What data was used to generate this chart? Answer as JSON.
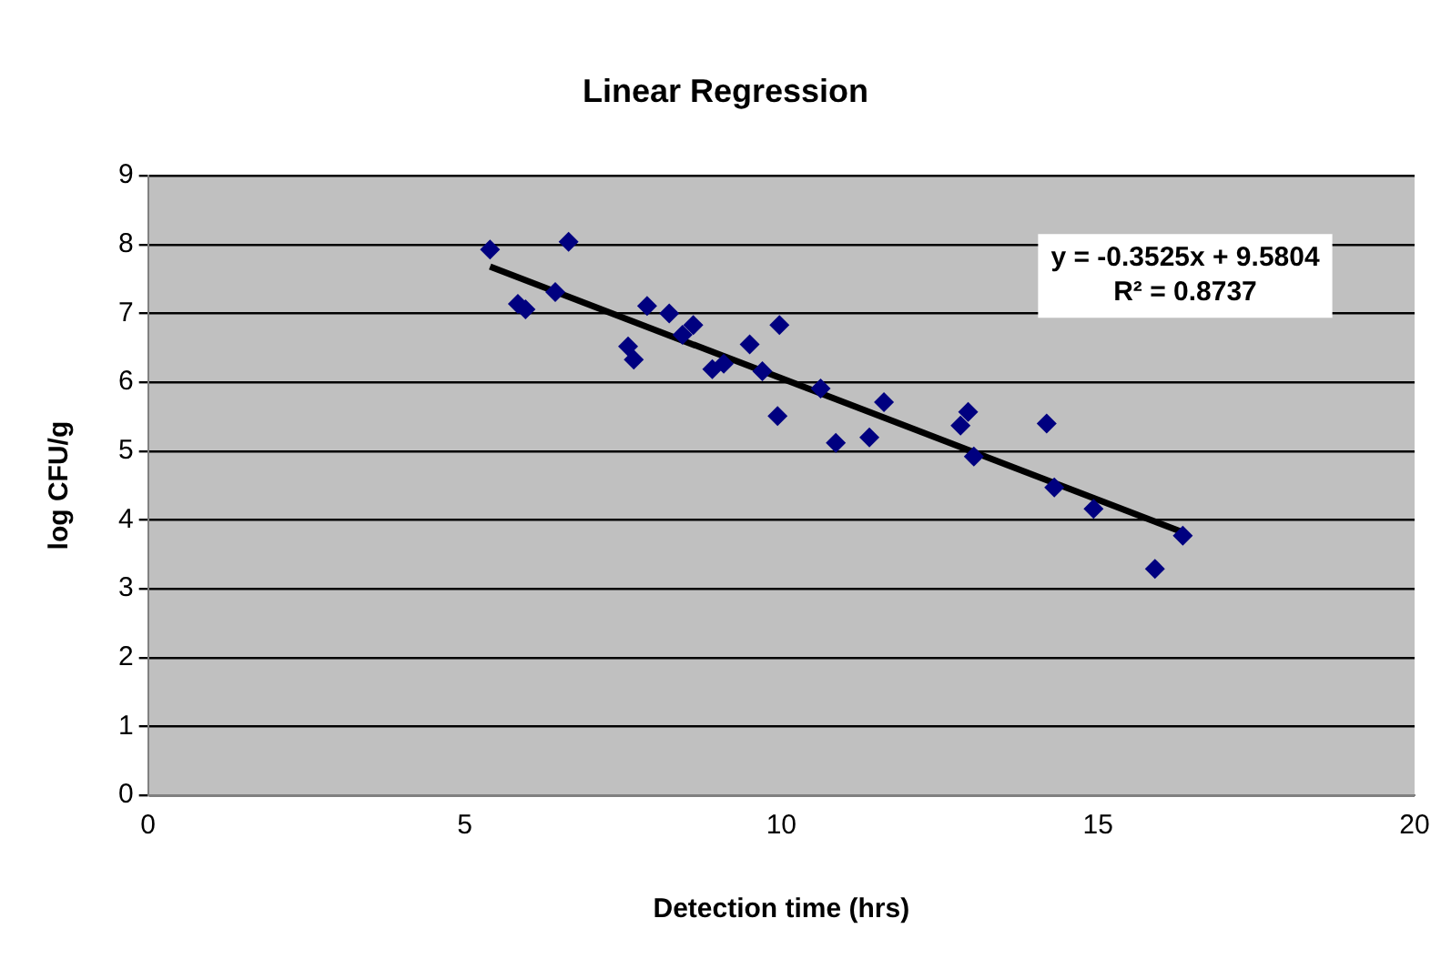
{
  "chart_data": {
    "type": "scatter",
    "title": "Linear Regression",
    "xlabel": "Detection time (hrs)",
    "ylabel": "log CFU/g",
    "xlim": [
      0,
      20
    ],
    "xticks": [
      0,
      5,
      10,
      15,
      20
    ],
    "ylim": [
      0,
      9
    ],
    "yticks": [
      0,
      1,
      2,
      3,
      4,
      5,
      6,
      7,
      8,
      9
    ],
    "grid": "y",
    "legend": false,
    "marker": "diamond",
    "series": [
      {
        "type": "scatter",
        "color": "#000080",
        "x": [
          5.4,
          5.84,
          5.96,
          6.43,
          6.64,
          7.58,
          7.67,
          7.88,
          8.23,
          8.44,
          8.61,
          8.91,
          9.09,
          9.5,
          9.7,
          9.97,
          9.94,
          10.62,
          10.86,
          11.39,
          11.62,
          12.83,
          12.95,
          13.04,
          14.19,
          14.31,
          14.93,
          15.9,
          16.34
        ],
        "values": [
          7.93,
          7.14,
          7.06,
          7.31,
          8.04,
          6.52,
          6.33,
          7.11,
          7.0,
          6.69,
          6.83,
          6.19,
          6.27,
          6.55,
          6.16,
          6.83,
          5.51,
          5.91,
          5.12,
          5.2,
          5.71,
          5.37,
          5.57,
          4.92,
          5.4,
          4.47,
          4.16,
          3.29,
          3.77
        ]
      },
      {
        "type": "line",
        "color": "#000000",
        "marker": "none",
        "x": [
          5.4,
          16.34
        ],
        "values": [
          7.68,
          3.82
        ]
      }
    ],
    "annotations": [
      "y = -0.3525x + 9.5804",
      "R² = 0.8737"
    ]
  }
}
